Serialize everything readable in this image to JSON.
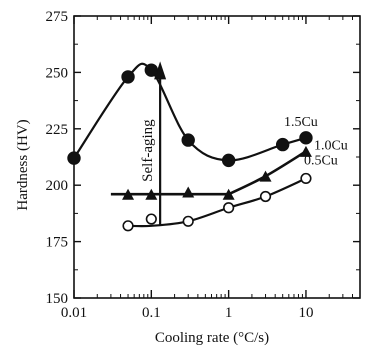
{
  "chart_data": {
    "type": "scatter",
    "xscale": "log",
    "xlim": [
      0.01,
      50
    ],
    "ylim": [
      150,
      275
    ],
    "grid": false,
    "xlabel": "Cooling rate (°C/s)",
    "ylabel": "Hardness (HV)",
    "xticks": [
      "0.01",
      "0.1",
      "1",
      "10"
    ],
    "yticks": [
      "150",
      "175",
      "200",
      "225",
      "250",
      "275"
    ],
    "series": [
      {
        "name": "1.5Cu",
        "marker": "filled-circle",
        "x": [
          0.01,
          0.05,
          0.1,
          0.3,
          1,
          5,
          10
        ],
        "y": [
          212,
          248,
          251,
          220,
          211,
          218,
          221
        ]
      },
      {
        "name": "1.0Cu",
        "marker": "filled-triangle",
        "x": [
          0.05,
          0.1,
          0.3,
          1,
          3,
          10
        ],
        "y": [
          196,
          196,
          197,
          196,
          204,
          215
        ]
      },
      {
        "name": "0.5Cu",
        "marker": "open-circle",
        "x": [
          0.05,
          0.1,
          0.3,
          1,
          3,
          10
        ],
        "y": [
          182,
          185,
          184,
          190,
          195,
          203
        ]
      }
    ],
    "annotation": {
      "text": "Self-aging",
      "x": 0.13,
      "y_from": 182,
      "y_to": 254
    }
  }
}
